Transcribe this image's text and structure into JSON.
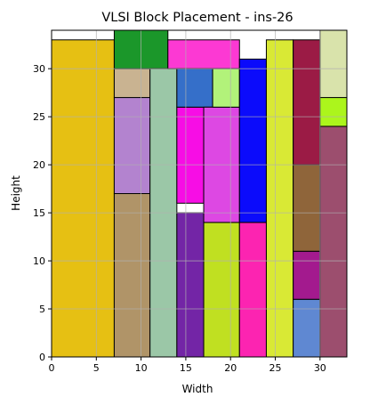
{
  "chart_data": {
    "type": "block-placement",
    "title": "VLSI Block Placement - ins-26",
    "xlabel": "Width",
    "ylabel": "Height",
    "xlim": [
      0,
      33
    ],
    "ylim": [
      0,
      34
    ],
    "grid": true,
    "x_ticks": [
      0,
      5,
      10,
      15,
      20,
      25,
      30
    ],
    "y_ticks": [
      0,
      5,
      10,
      15,
      20,
      25,
      30
    ],
    "blocks": [
      {
        "x": 0,
        "y": 0,
        "w": 7,
        "h": 33,
        "color": "#e6c013"
      },
      {
        "x": 7,
        "y": 0,
        "w": 4,
        "h": 17,
        "color": "#b09468"
      },
      {
        "x": 7,
        "y": 17,
        "w": 4,
        "h": 10,
        "color": "#b383cf"
      },
      {
        "x": 7,
        "y": 27,
        "w": 4,
        "h": 3,
        "color": "#c9b391"
      },
      {
        "x": 7,
        "y": 30,
        "w": 6,
        "h": 4,
        "color": "#1b972a"
      },
      {
        "x": 11,
        "y": 0,
        "w": 3,
        "h": 30,
        "color": "#9bc7a7"
      },
      {
        "x": 13,
        "y": 30,
        "w": 8,
        "h": 3,
        "color": "#fc39d3"
      },
      {
        "x": 14,
        "y": 0,
        "w": 3,
        "h": 15,
        "color": "#7325a6"
      },
      {
        "x": 14,
        "y": 16,
        "w": 3,
        "h": 10,
        "color": "#f70de5"
      },
      {
        "x": 14,
        "y": 26,
        "w": 4,
        "h": 4,
        "color": "#356fc9"
      },
      {
        "x": 17,
        "y": 0,
        "w": 4,
        "h": 14,
        "color": "#c0e021"
      },
      {
        "x": 17,
        "y": 14,
        "w": 4,
        "h": 12,
        "color": "#dd48e3"
      },
      {
        "x": 18,
        "y": 26,
        "w": 3,
        "h": 4,
        "color": "#b2f27a"
      },
      {
        "x": 21,
        "y": 0,
        "w": 3,
        "h": 14,
        "color": "#fc24b1"
      },
      {
        "x": 21,
        "y": 14,
        "w": 3,
        "h": 17,
        "color": "#0b0bfb"
      },
      {
        "x": 24,
        "y": 0,
        "w": 3,
        "h": 33,
        "color": "#d9e935"
      },
      {
        "x": 27,
        "y": 0,
        "w": 3,
        "h": 6,
        "color": "#5f88d2"
      },
      {
        "x": 27,
        "y": 6,
        "w": 3,
        "h": 5,
        "color": "#a31a8e"
      },
      {
        "x": 27,
        "y": 11,
        "w": 3,
        "h": 9,
        "color": "#8f653a"
      },
      {
        "x": 27,
        "y": 20,
        "w": 3,
        "h": 13,
        "color": "#9b1b45"
      },
      {
        "x": 30,
        "y": 0,
        "w": 3,
        "h": 24,
        "color": "#9c4e6e"
      },
      {
        "x": 30,
        "y": 24,
        "w": 3,
        "h": 3,
        "color": "#acf51c"
      },
      {
        "x": 30,
        "y": 27,
        "w": 3,
        "h": 7,
        "color": "#d9e3ab"
      }
    ]
  }
}
